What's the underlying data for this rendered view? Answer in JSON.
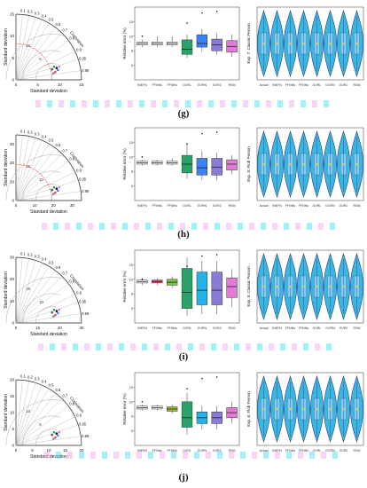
{
  "rows": [
    {
      "label": "(g)",
      "taylor": {
        "max": 15,
        "ticks": [
          "0",
          "5",
          "10",
          "15"
        ],
        "arcs": [
          "5",
          "10"
        ],
        "red_arc": true
      },
      "box": {
        "ylabel": "Relative error (%)",
        "yticks": [
          "0",
          "5",
          "10",
          "15"
        ],
        "cats": [
          "INEFN",
          "FFNNs",
          "FFNNs",
          "GVRL",
          "GVRN",
          "GVR2",
          "RSM"
        ],
        "boxes": [
          {
            "q1": 0.48,
            "med": 0.5,
            "q3": 0.52,
            "lo": 0.45,
            "hi": 0.55,
            "color": "#ffffff"
          },
          {
            "q1": 0.48,
            "med": 0.5,
            "q3": 0.52,
            "lo": 0.45,
            "hi": 0.6,
            "color": "#ffffff"
          },
          {
            "q1": 0.48,
            "med": 0.5,
            "q3": 0.52,
            "lo": 0.45,
            "hi": 0.6,
            "color": "#ffffff"
          },
          {
            "q1": 0.35,
            "med": 0.42,
            "q3": 0.55,
            "lo": 0.3,
            "hi": 0.62,
            "color": "#2aa36b"
          },
          {
            "q1": 0.45,
            "med": 0.5,
            "q3": 0.62,
            "lo": 0.38,
            "hi": 0.7,
            "color": "#3b82f6"
          },
          {
            "q1": 0.4,
            "med": 0.48,
            "q3": 0.56,
            "lo": 0.35,
            "hi": 0.64,
            "color": "#8b7bd8"
          },
          {
            "q1": 0.38,
            "med": 0.46,
            "q3": 0.54,
            "lo": 0.32,
            "hi": 0.62,
            "color": "#e37bd6"
          }
        ]
      },
      "violin": {
        "ylabel": "Exp. 7: Classic Person",
        "cats": [
          "Actual",
          "INEFN",
          "FFNNs",
          "FFNNs",
          "GVRL",
          "GVRN",
          "GVR2",
          "RSM"
        ]
      }
    },
    {
      "label": "(h)",
      "taylor": {
        "max": 35,
        "ticks": [
          "0",
          "10",
          "20",
          "30"
        ],
        "arcs": [
          "10",
          "20"
        ],
        "red_arc": true
      },
      "box": {
        "ylabel": "Relative error (%)",
        "yticks": [
          "0",
          "5",
          "10",
          "15"
        ],
        "cats": [
          "INEFN",
          "FFNNs",
          "FFNNs",
          "GVRL",
          "GVRN",
          "GVR2",
          "RSM"
        ],
        "boxes": [
          {
            "q1": 0.5,
            "med": 0.52,
            "q3": 0.54,
            "lo": 0.48,
            "hi": 0.56,
            "color": "#ffffff"
          },
          {
            "q1": 0.5,
            "med": 0.52,
            "q3": 0.54,
            "lo": 0.48,
            "hi": 0.56,
            "color": "#ffffff"
          },
          {
            "q1": 0.5,
            "med": 0.52,
            "q3": 0.54,
            "lo": 0.48,
            "hi": 0.58,
            "color": "#ffffff"
          },
          {
            "q1": 0.38,
            "med": 0.5,
            "q3": 0.62,
            "lo": 0.3,
            "hi": 0.78,
            "color": "#2aa36b"
          },
          {
            "q1": 0.35,
            "med": 0.45,
            "q3": 0.58,
            "lo": 0.28,
            "hi": 0.68,
            "color": "#3b82f6"
          },
          {
            "q1": 0.35,
            "med": 0.46,
            "q3": 0.58,
            "lo": 0.28,
            "hi": 0.66,
            "color": "#8b7bd8"
          },
          {
            "q1": 0.42,
            "med": 0.5,
            "q3": 0.56,
            "lo": 0.36,
            "hi": 0.62,
            "color": "#e37bd6"
          }
        ]
      },
      "violin": {
        "ylabel": "Exp. 8: Flob Person",
        "cats": [
          "Actual",
          "INEFN",
          "FFNNs",
          "FFNNs",
          "GVRL",
          "GVRN",
          "GVR2",
          "RSM"
        ]
      }
    },
    {
      "label": "(i)",
      "taylor": {
        "max": 30,
        "ticks": [
          "0",
          "10",
          "20",
          "30"
        ],
        "arcs": [
          "10",
          "20"
        ],
        "red_arc": false
      },
      "box": {
        "ylabel": "Relative error (%)",
        "yticks": [
          "0",
          "5",
          "10",
          "15"
        ],
        "cats": [
          "INEFN",
          "FFNNs",
          "FFNNs",
          "GVRL",
          "GVRN",
          "GVR2",
          "RSM"
        ],
        "boxes": [
          {
            "q1": 0.55,
            "med": 0.57,
            "q3": 0.59,
            "lo": 0.52,
            "hi": 0.62,
            "color": "#ffffff"
          },
          {
            "q1": 0.55,
            "med": 0.57,
            "q3": 0.59,
            "lo": 0.52,
            "hi": 0.62,
            "color": "#ff4b6e"
          },
          {
            "q1": 0.52,
            "med": 0.56,
            "q3": 0.6,
            "lo": 0.48,
            "hi": 0.64,
            "color": "#7cc24d"
          },
          {
            "q1": 0.2,
            "med": 0.42,
            "q3": 0.75,
            "lo": 0.1,
            "hi": 0.9,
            "color": "#2aa36b"
          },
          {
            "q1": 0.25,
            "med": 0.45,
            "q3": 0.7,
            "lo": 0.12,
            "hi": 0.85,
            "color": "#22b3e8"
          },
          {
            "q1": 0.25,
            "med": 0.45,
            "q3": 0.7,
            "lo": 0.12,
            "hi": 0.85,
            "color": "#8b7bd8"
          },
          {
            "q1": 0.35,
            "med": 0.5,
            "q3": 0.62,
            "lo": 0.22,
            "hi": 0.74,
            "color": "#e37bd6"
          }
        ]
      },
      "violin": {
        "ylabel": "Exp. 5: Classic Person",
        "cats": [
          "Actual",
          "INEFN",
          "FFNNs",
          "FFNNs",
          "GVRL",
          "GVRN",
          "GVR2",
          "RSM"
        ]
      }
    },
    {
      "label": "(j)",
      "taylor": {
        "max": 20,
        "ticks": [
          "0",
          "5",
          "10",
          "15",
          "20"
        ],
        "arcs": [
          "5",
          "10"
        ],
        "red_arc": false
      },
      "box": {
        "ylabel": "Relative error (%)",
        "yticks": [
          "0",
          "5",
          "10",
          "15"
        ],
        "cats": [
          "INEFN",
          "FFNNs",
          "FFNNs",
          "GVRL",
          "GVRN",
          "GVR2",
          "RSM"
        ],
        "boxes": [
          {
            "q1": 0.5,
            "med": 0.52,
            "q3": 0.54,
            "lo": 0.48,
            "hi": 0.56,
            "color": "#ffffff"
          },
          {
            "q1": 0.5,
            "med": 0.52,
            "q3": 0.54,
            "lo": 0.48,
            "hi": 0.56,
            "color": "#ffffff"
          },
          {
            "q1": 0.47,
            "med": 0.5,
            "q3": 0.53,
            "lo": 0.44,
            "hi": 0.56,
            "color": "#a8b93a"
          },
          {
            "q1": 0.25,
            "med": 0.38,
            "q3": 0.6,
            "lo": 0.15,
            "hi": 0.72,
            "color": "#2aa36b"
          },
          {
            "q1": 0.3,
            "med": 0.38,
            "q3": 0.46,
            "lo": 0.22,
            "hi": 0.54,
            "color": "#22b3e8"
          },
          {
            "q1": 0.3,
            "med": 0.38,
            "q3": 0.46,
            "lo": 0.22,
            "hi": 0.54,
            "color": "#8b7bd8"
          },
          {
            "q1": 0.38,
            "med": 0.45,
            "q3": 0.52,
            "lo": 0.3,
            "hi": 0.6,
            "color": "#e37bd6"
          }
        ]
      },
      "violin": {
        "ylabel": "Exp. 6: Flob Person",
        "cats": [
          "Actual",
          "INEFN",
          "FFNNs",
          "FFNNs",
          "GVRL",
          "GVRN",
          "GVR2",
          "RSM"
        ]
      }
    }
  ],
  "taylor_common": {
    "xlabel": "Standard deviation",
    "ylabel": "Standard deviation",
    "corr_label": "Correlation",
    "corr_ticks": [
      "0.1",
      "0.2",
      "0.3",
      "0.4",
      "0.5",
      "0.6",
      "0.7",
      "0.8",
      "0.9",
      "0.95",
      "0.99"
    ]
  },
  "colors": {
    "violin_outer": "#3bb6e0",
    "violin_inner": "#7fd0ee",
    "violin_edge": "#2b3d8c",
    "taylor_grid": "#444444",
    "stripe_cyan": "#45e4ef",
    "stripe_pink": "#f3a7ee"
  }
}
